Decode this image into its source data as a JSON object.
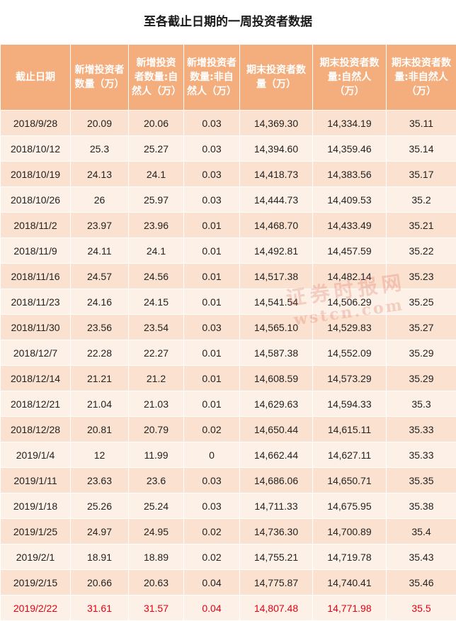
{
  "title": "至各截止日期的一周投资者数据",
  "colors": {
    "header_bg": "#f4ad7d",
    "row_odd": "#fbe1d0",
    "row_even": "#fdf0e7",
    "highlight_text": "#e60012"
  },
  "table": {
    "columns": [
      "截止日期",
      "新增投资者数量（万）",
      "新增投资者数量:自然人（万）",
      "新增投资者数量:非自然人（万）",
      "期末投资者数量（万）",
      "期末投资者数量:自然人（万）",
      "期末投资者数量:非自然人（万）"
    ],
    "rows": [
      [
        "2018/9/28",
        "20.09",
        "20.06",
        "0.03",
        "14,369.30",
        "14,334.19",
        "35.11"
      ],
      [
        "2018/10/12",
        "25.3",
        "25.27",
        "0.03",
        "14,394.60",
        "14,359.46",
        "35.14"
      ],
      [
        "2018/10/19",
        "24.13",
        "24.1",
        "0.03",
        "14,418.73",
        "14,383.56",
        "35.17"
      ],
      [
        "2018/10/26",
        "26",
        "25.97",
        "0.03",
        "14,444.73",
        "14,409.53",
        "35.2"
      ],
      [
        "2018/11/2",
        "23.97",
        "23.96",
        "0.01",
        "14,468.70",
        "14,433.49",
        "35.21"
      ],
      [
        "2018/11/9",
        "24.11",
        "24.1",
        "0.01",
        "14,492.81",
        "14,457.59",
        "35.22"
      ],
      [
        "2018/11/16",
        "24.57",
        "24.56",
        "0.01",
        "14,517.38",
        "14,482.14",
        "35.23"
      ],
      [
        "2018/11/23",
        "24.16",
        "24.15",
        "0.01",
        "14,541.54",
        "14,506.29",
        "35.25"
      ],
      [
        "2018/11/30",
        "23.56",
        "23.54",
        "0.03",
        "14,565.10",
        "14,529.83",
        "35.27"
      ],
      [
        "2018/12/7",
        "22.28",
        "22.27",
        "0.01",
        "14,587.38",
        "14,552.09",
        "35.29"
      ],
      [
        "2018/12/14",
        "21.21",
        "21.2",
        "0.01",
        "14,608.59",
        "14,573.29",
        "35.29"
      ],
      [
        "2018/12/21",
        "21.04",
        "21.03",
        "0.01",
        "14,629.63",
        "14,594.33",
        "35.3"
      ],
      [
        "2018/12/28",
        "20.81",
        "20.79",
        "0.02",
        "14,650.44",
        "14,615.11",
        "35.33"
      ],
      [
        "2019/1/4",
        "12",
        "11.99",
        "0",
        "14,662.44",
        "14,627.11",
        "35.33"
      ],
      [
        "2019/1/11",
        "23.63",
        "23.6",
        "0.03",
        "14,686.06",
        "14,650.71",
        "35.35"
      ],
      [
        "2019/1/18",
        "25.26",
        "25.24",
        "0.03",
        "14,711.33",
        "14,675.95",
        "35.38"
      ],
      [
        "2019/1/25",
        "24.97",
        "24.95",
        "0.02",
        "14,736.30",
        "14,700.89",
        "35.4"
      ],
      [
        "2019/2/1",
        "18.91",
        "18.89",
        "0.02",
        "14,755.21",
        "14,719.78",
        "35.43"
      ],
      [
        "2019/2/15",
        "20.66",
        "20.63",
        "0.04",
        "14,775.87",
        "14,740.41",
        "35.46"
      ],
      [
        "2019/2/22",
        "31.61",
        "31.57",
        "0.04",
        "14,807.48",
        "14,771.98",
        "35.5"
      ]
    ],
    "highlighted_row_index": 19
  },
  "watermark": {
    "line1": "证券时报网",
    "line2": "wstcn.com"
  }
}
